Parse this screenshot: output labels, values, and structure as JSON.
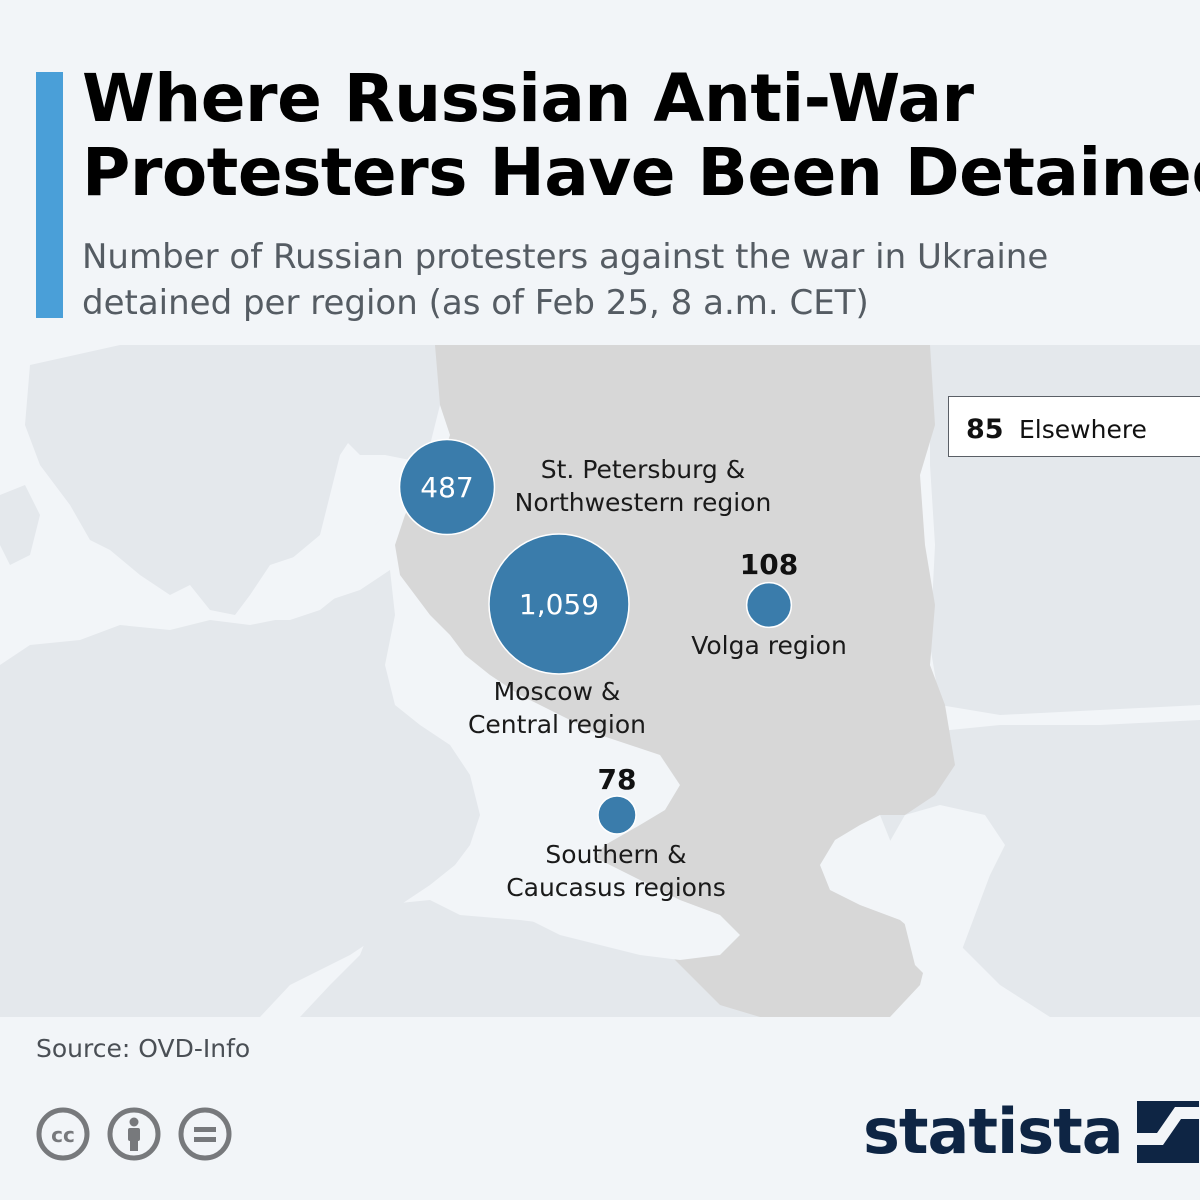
{
  "header": {
    "title_lines": [
      "Where Russian Anti-War",
      "Protesters Have Been Detained"
    ],
    "subtitle_lines": [
      "Number of Russian protesters against the war in Ukraine",
      "detained per region (as of Feb 25, 8 a.m. CET)"
    ]
  },
  "map": {
    "regions": [
      {
        "value": "487",
        "value_display": "inside",
        "label_lines": [
          "St. Petersburg &",
          "Northwestern region"
        ]
      },
      {
        "value": "1,059",
        "value_display": "inside",
        "label_lines": [
          "Moscow &",
          "Central region"
        ]
      },
      {
        "value": "108",
        "value_display": "above",
        "label_lines": [
          "Volga region"
        ]
      },
      {
        "value": "78",
        "value_display": "above",
        "label_lines": [
          "Southern &",
          "Caucasus regions"
        ]
      }
    ],
    "elsewhere": {
      "value": "85",
      "label": "Elsewhere"
    },
    "colors": {
      "bubble": "#3a7cab",
      "russia": "#d7d7d7",
      "land": "#e4e8ec",
      "sea": "#f2f5f8"
    }
  },
  "footer": {
    "source": "Source: OVD-Info",
    "brand": "statista",
    "license_icons": [
      "cc-icon",
      "attribution-icon",
      "no-derivatives-icon"
    ]
  }
}
